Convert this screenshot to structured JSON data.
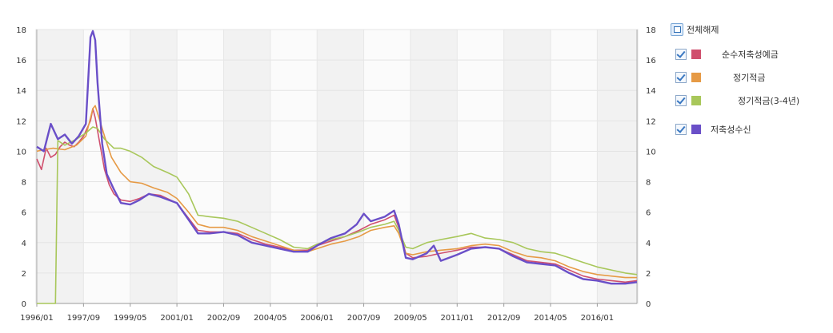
{
  "chart_data": {
    "type": "line",
    "x_start": "1996/01",
    "x_end": "2017/06",
    "x_ticks": [
      "1996/01",
      "1997/09",
      "1999/05",
      "2001/01",
      "2002/09",
      "2004/05",
      "2006/01",
      "2007/09",
      "2009/05",
      "2011/01",
      "2012/09",
      "2014/05",
      "2016/01"
    ],
    "ylim": [
      0,
      18
    ],
    "y_ticks": [
      0,
      2,
      4,
      6,
      8,
      10,
      12,
      14,
      16,
      18
    ],
    "grid": true,
    "legend_position": "right",
    "series": [
      {
        "name": "순수저축성예금",
        "color": "#d0506e",
        "points": [
          [
            "1996/01",
            9.5
          ],
          [
            "1996/03",
            8.8
          ],
          [
            "1996/05",
            10.2
          ],
          [
            "1996/07",
            9.6
          ],
          [
            "1996/09",
            9.8
          ],
          [
            "1996/11",
            10.3
          ],
          [
            "1997/01",
            10.6
          ],
          [
            "1997/03",
            10.4
          ],
          [
            "1997/05",
            10.3
          ],
          [
            "1997/07",
            10.6
          ],
          [
            "1997/09",
            11.0
          ],
          [
            "1997/12",
            12.0
          ],
          [
            "1998/01",
            12.8
          ],
          [
            "1998/02",
            12.2
          ],
          [
            "1998/04",
            10.5
          ],
          [
            "1998/06",
            8.8
          ],
          [
            "1998/08",
            7.8
          ],
          [
            "1998/10",
            7.2
          ],
          [
            "1999/01",
            6.8
          ],
          [
            "1999/05",
            6.7
          ],
          [
            "1999/09",
            6.9
          ],
          [
            "2000/01",
            7.2
          ],
          [
            "2000/06",
            7.1
          ],
          [
            "2001/01",
            6.6
          ],
          [
            "2001/06",
            5.6
          ],
          [
            "2001/10",
            4.8
          ],
          [
            "2002/03",
            4.7
          ],
          [
            "2002/09",
            4.7
          ],
          [
            "2003/03",
            4.6
          ],
          [
            "2003/09",
            4.2
          ],
          [
            "2004/03",
            3.9
          ],
          [
            "2004/09",
            3.7
          ],
          [
            "2005/03",
            3.5
          ],
          [
            "2005/09",
            3.5
          ],
          [
            "2006/01",
            3.8
          ],
          [
            "2006/07",
            4.1
          ],
          [
            "2007/01",
            4.4
          ],
          [
            "2007/07",
            4.8
          ],
          [
            "2007/12",
            5.2
          ],
          [
            "2008/06",
            5.5
          ],
          [
            "2008/10",
            5.8
          ],
          [
            "2008/12",
            5.0
          ],
          [
            "2009/03",
            3.3
          ],
          [
            "2009/06",
            3.0
          ],
          [
            "2009/12",
            3.1
          ],
          [
            "2010/06",
            3.3
          ],
          [
            "2011/01",
            3.5
          ],
          [
            "2011/07",
            3.7
          ],
          [
            "2012/01",
            3.7
          ],
          [
            "2012/07",
            3.6
          ],
          [
            "2013/01",
            3.2
          ],
          [
            "2013/07",
            2.8
          ],
          [
            "2014/01",
            2.7
          ],
          [
            "2014/07",
            2.6
          ],
          [
            "2015/01",
            2.2
          ],
          [
            "2015/07",
            1.8
          ],
          [
            "2016/01",
            1.6
          ],
          [
            "2016/07",
            1.5
          ],
          [
            "2017/01",
            1.4
          ],
          [
            "2017/06",
            1.5
          ]
        ]
      },
      {
        "name": "정기적금",
        "color": "#e69a45",
        "points": [
          [
            "1996/01",
            10.0
          ],
          [
            "1996/04",
            10.1
          ],
          [
            "1996/08",
            10.2
          ],
          [
            "1997/01",
            10.1
          ],
          [
            "1997/06",
            10.4
          ],
          [
            "1997/10",
            11.0
          ],
          [
            "1998/01",
            12.8
          ],
          [
            "1998/02",
            13.0
          ],
          [
            "1998/04",
            12.0
          ],
          [
            "1998/06",
            11.0
          ],
          [
            "1998/09",
            9.6
          ],
          [
            "1999/01",
            8.6
          ],
          [
            "1999/05",
            8.0
          ],
          [
            "1999/10",
            7.9
          ],
          [
            "2000/03",
            7.6
          ],
          [
            "2000/09",
            7.3
          ],
          [
            "2001/01",
            6.9
          ],
          [
            "2001/06",
            6.0
          ],
          [
            "2001/10",
            5.2
          ],
          [
            "2002/03",
            5.0
          ],
          [
            "2002/09",
            5.0
          ],
          [
            "2003/03",
            4.8
          ],
          [
            "2003/09",
            4.4
          ],
          [
            "2004/03",
            4.1
          ],
          [
            "2004/09",
            3.8
          ],
          [
            "2005/03",
            3.5
          ],
          [
            "2005/09",
            3.4
          ],
          [
            "2006/01",
            3.6
          ],
          [
            "2006/07",
            3.9
          ],
          [
            "2007/01",
            4.1
          ],
          [
            "2007/07",
            4.4
          ],
          [
            "2007/12",
            4.8
          ],
          [
            "2008/06",
            5.0
          ],
          [
            "2008/10",
            5.1
          ],
          [
            "2008/12",
            4.6
          ],
          [
            "2009/03",
            3.3
          ],
          [
            "2009/06",
            3.2
          ],
          [
            "2009/12",
            3.4
          ],
          [
            "2010/06",
            3.5
          ],
          [
            "2011/01",
            3.6
          ],
          [
            "2011/07",
            3.8
          ],
          [
            "2012/01",
            3.9
          ],
          [
            "2012/07",
            3.8
          ],
          [
            "2013/01",
            3.4
          ],
          [
            "2013/07",
            3.1
          ],
          [
            "2014/01",
            3.0
          ],
          [
            "2014/07",
            2.8
          ],
          [
            "2015/01",
            2.4
          ],
          [
            "2015/07",
            2.1
          ],
          [
            "2016/01",
            1.9
          ],
          [
            "2016/07",
            1.8
          ],
          [
            "2017/01",
            1.7
          ],
          [
            "2017/06",
            1.7
          ]
        ]
      },
      {
        "name": "정기적금(3-4년)",
        "color": "#a8c75a",
        "points": [
          [
            "1996/01",
            0.0
          ],
          [
            "1996/09",
            0.0
          ],
          [
            "1996/10",
            10.7
          ],
          [
            "1997/01",
            10.4
          ],
          [
            "1997/06",
            10.8
          ],
          [
            "1997/10",
            11.2
          ],
          [
            "1998/01",
            11.6
          ],
          [
            "1998/03",
            11.5
          ],
          [
            "1998/06",
            10.8
          ],
          [
            "1998/10",
            10.2
          ],
          [
            "1999/01",
            10.2
          ],
          [
            "1999/05",
            10.0
          ],
          [
            "1999/10",
            9.6
          ],
          [
            "2000/03",
            9.0
          ],
          [
            "2000/09",
            8.6
          ],
          [
            "2001/01",
            8.3
          ],
          [
            "2001/06",
            7.2
          ],
          [
            "2001/10",
            5.8
          ],
          [
            "2002/03",
            5.7
          ],
          [
            "2002/09",
            5.6
          ],
          [
            "2003/03",
            5.4
          ],
          [
            "2003/09",
            5.0
          ],
          [
            "2004/03",
            4.6
          ],
          [
            "2004/09",
            4.2
          ],
          [
            "2005/03",
            3.7
          ],
          [
            "2005/09",
            3.6
          ],
          [
            "2006/01",
            3.9
          ],
          [
            "2006/07",
            4.2
          ],
          [
            "2007/01",
            4.4
          ],
          [
            "2007/07",
            4.7
          ],
          [
            "2007/12",
            5.0
          ],
          [
            "2008/06",
            5.2
          ],
          [
            "2008/10",
            5.4
          ],
          [
            "2008/12",
            4.8
          ],
          [
            "2009/03",
            3.7
          ],
          [
            "2009/06",
            3.6
          ],
          [
            "2009/12",
            4.0
          ],
          [
            "2010/06",
            4.2
          ],
          [
            "2011/01",
            4.4
          ],
          [
            "2011/07",
            4.6
          ],
          [
            "2012/01",
            4.3
          ],
          [
            "2012/07",
            4.2
          ],
          [
            "2013/01",
            4.0
          ],
          [
            "2013/07",
            3.6
          ],
          [
            "2014/01",
            3.4
          ],
          [
            "2014/07",
            3.3
          ],
          [
            "2015/01",
            3.0
          ],
          [
            "2015/07",
            2.7
          ],
          [
            "2016/01",
            2.4
          ],
          [
            "2016/07",
            2.2
          ],
          [
            "2017/01",
            2.0
          ],
          [
            "2017/06",
            1.9
          ]
        ]
      },
      {
        "name": "저축성수신",
        "color": "#6a4fc8",
        "points": [
          [
            "1996/01",
            10.3
          ],
          [
            "1996/04",
            10.0
          ],
          [
            "1996/07",
            11.8
          ],
          [
            "1996/10",
            10.8
          ],
          [
            "1997/01",
            11.1
          ],
          [
            "1997/04",
            10.5
          ],
          [
            "1997/07",
            11.0
          ],
          [
            "1997/10",
            11.8
          ],
          [
            "1997/12",
            17.5
          ],
          [
            "1998/01",
            17.9
          ],
          [
            "1998/02",
            17.3
          ],
          [
            "1998/03",
            14.5
          ],
          [
            "1998/05",
            10.5
          ],
          [
            "1998/07",
            8.5
          ],
          [
            "1998/10",
            7.5
          ],
          [
            "1999/01",
            6.6
          ],
          [
            "1999/05",
            6.5
          ],
          [
            "1999/09",
            6.8
          ],
          [
            "2000/01",
            7.2
          ],
          [
            "2000/06",
            7.0
          ],
          [
            "2001/01",
            6.6
          ],
          [
            "2001/06",
            5.5
          ],
          [
            "2001/10",
            4.6
          ],
          [
            "2002/03",
            4.6
          ],
          [
            "2002/09",
            4.7
          ],
          [
            "2003/03",
            4.5
          ],
          [
            "2003/09",
            4.0
          ],
          [
            "2004/03",
            3.8
          ],
          [
            "2004/09",
            3.6
          ],
          [
            "2005/03",
            3.4
          ],
          [
            "2005/09",
            3.4
          ],
          [
            "2006/01",
            3.8
          ],
          [
            "2006/07",
            4.3
          ],
          [
            "2007/01",
            4.6
          ],
          [
            "2007/06",
            5.2
          ],
          [
            "2007/09",
            5.9
          ],
          [
            "2007/12",
            5.4
          ],
          [
            "2008/06",
            5.7
          ],
          [
            "2008/10",
            6.1
          ],
          [
            "2008/12",
            5.2
          ],
          [
            "2009/03",
            3.0
          ],
          [
            "2009/06",
            2.9
          ],
          [
            "2009/12",
            3.3
          ],
          [
            "2010/03",
            3.8
          ],
          [
            "2010/06",
            2.8
          ],
          [
            "2011/01",
            3.2
          ],
          [
            "2011/07",
            3.6
          ],
          [
            "2012/01",
            3.7
          ],
          [
            "2012/07",
            3.6
          ],
          [
            "2013/01",
            3.1
          ],
          [
            "2013/07",
            2.7
          ],
          [
            "2014/01",
            2.6
          ],
          [
            "2014/07",
            2.5
          ],
          [
            "2015/01",
            2.0
          ],
          [
            "2015/07",
            1.6
          ],
          [
            "2016/01",
            1.5
          ],
          [
            "2016/07",
            1.3
          ],
          [
            "2017/01",
            1.3
          ],
          [
            "2017/06",
            1.4
          ]
        ]
      }
    ]
  },
  "legend": {
    "toggle_all_label": "전체해제",
    "items": [
      {
        "label": "순수저축성예금",
        "color": "#d0506e"
      },
      {
        "label": "정기적금",
        "color": "#e69a45"
      },
      {
        "label": "정기적금(3-4년)",
        "color": "#a8c75a"
      },
      {
        "label": "저축성수신",
        "color": "#6a4fc8"
      }
    ]
  }
}
